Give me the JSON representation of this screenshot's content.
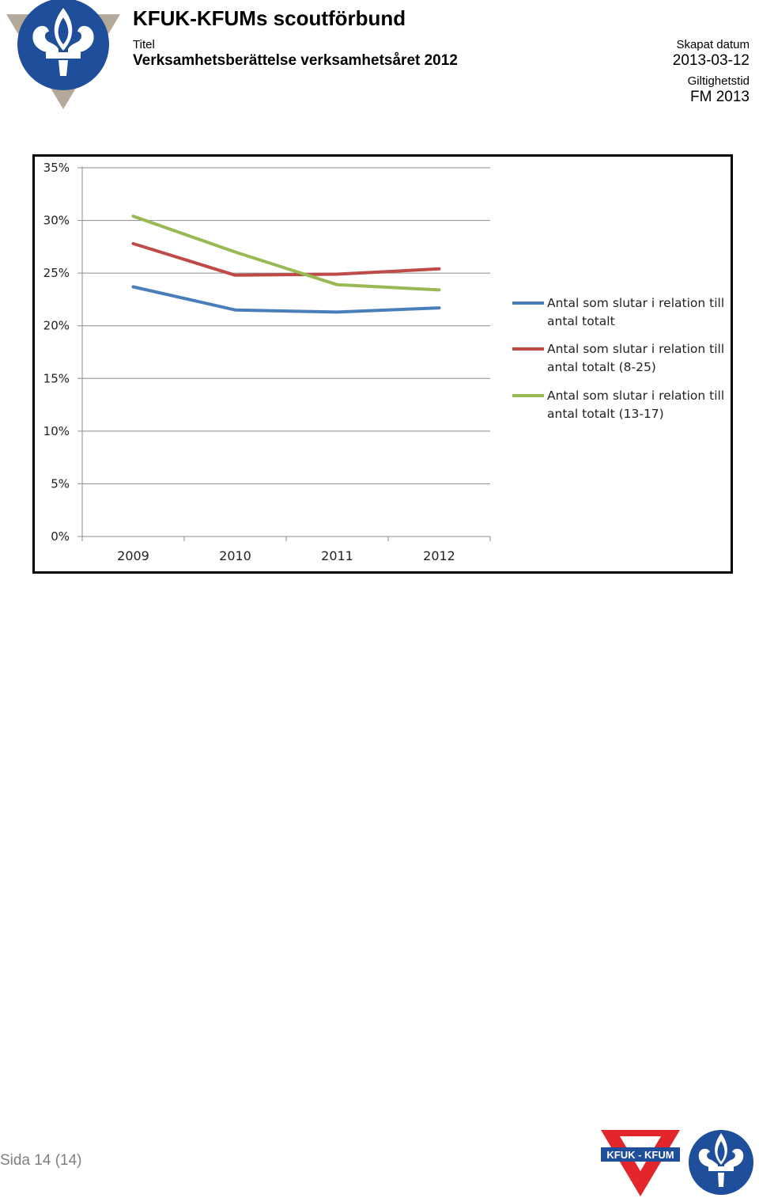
{
  "header": {
    "organization": "KFUK-KFUMs scoutförbund",
    "title_label": "Titel",
    "title_value": "Verksamhetsberättelse verksamhetsåret 2012",
    "created_label": "Skapat datum",
    "created_value": "2013-03-12",
    "validity_label": "Giltighetstid",
    "validity_value": "FM 2013"
  },
  "footer": {
    "page": "Sida 14 (14)",
    "logo_text": "KFUK - KFUM"
  },
  "colors": {
    "series1": "#4a7ebb",
    "series2": "#be4b48",
    "series3": "#98b954",
    "logo_blue": "#1f4e9a",
    "logo_tan": "#b3a89a",
    "logo_red": "#e3262c"
  },
  "chart_data": {
    "type": "line",
    "categories": [
      "2009",
      "2010",
      "2011",
      "2012"
    ],
    "ylim": [
      0,
      35
    ],
    "yticks": [
      "0%",
      "5%",
      "10%",
      "15%",
      "20%",
      "25%",
      "30%",
      "35%"
    ],
    "ytick_values": [
      0,
      5,
      10,
      15,
      20,
      25,
      30,
      35
    ],
    "grid": true,
    "legend_position": "right",
    "series": [
      {
        "name_line1": "Antal som slutar i relation till",
        "name_line2": "antal totalt",
        "values": [
          23.7,
          21.5,
          21.3,
          21.7
        ]
      },
      {
        "name_line1": "Antal som slutar i relation till",
        "name_line2": "antal totalt (8-25)",
        "values": [
          27.8,
          24.8,
          24.9,
          25.4
        ]
      },
      {
        "name_line1": "Antal som slutar i relation till",
        "name_line2": "antal totalt (13-17)",
        "values": [
          30.4,
          27.0,
          23.9,
          23.4
        ]
      }
    ]
  }
}
